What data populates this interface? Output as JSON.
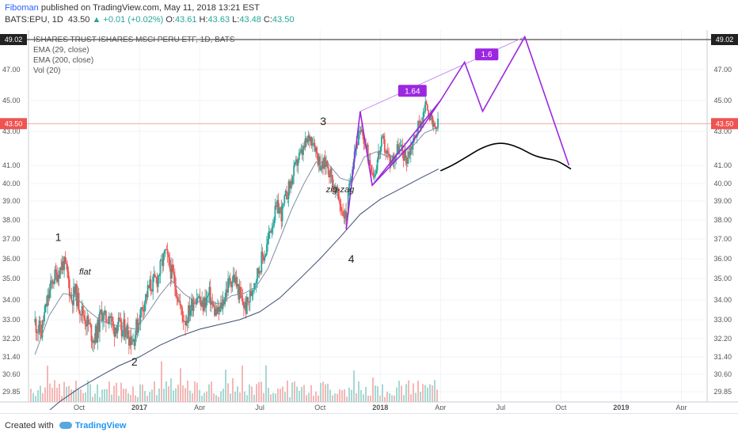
{
  "header": {
    "author": "Fiboman",
    "published": "published on TradingView.com, May 11, 2018 13:21 EST",
    "symbol": "BATS:EPU, 1D",
    "last": "43.50",
    "change": "▲ +0.01 (+0.02%)",
    "o_label": "O:",
    "o_val": "43.61",
    "h_label": "H:",
    "h_val": "43.63",
    "l_label": "L:",
    "l_val": "43.48",
    "c_label": "C:",
    "c_val": "43.50"
  },
  "legend": {
    "title": "ISHARES TRUST ISHARES MSCI PERU ETF, 1D, BATS",
    "ema1": "EMA (29, close)",
    "ema2": "EMA (200, close)",
    "vol": "Vol (20)"
  },
  "footer": {
    "created_with": "Created with",
    "brand": "TradingView"
  },
  "colors": {
    "up": "#26a69a",
    "down": "#ef5350",
    "ema": "#7f8fa4",
    "pattern": "#9c27e0",
    "projection": "#000000",
    "price_line": "#ef5350"
  },
  "chart_data": {
    "type": "candlestick",
    "y_ticks": [
      29.85,
      30.6,
      31.4,
      32.2,
      33.0,
      34.0,
      35.0,
      36.0,
      37.0,
      38.0,
      39.0,
      40.0,
      41.0,
      43.0,
      45.0,
      47.0
    ],
    "y_tick_labels": [
      "29.85",
      "30.60",
      "31.40",
      "32.20",
      "33.00",
      "34.00",
      "35.00",
      "36.00",
      "37.00",
      "38.00",
      "39.00",
      "40.00",
      "41.00",
      "43.00",
      "45.00",
      "47.00"
    ],
    "x_ticks": [
      "Oct",
      "2017",
      "Apr",
      "Jul",
      "Oct",
      "2018",
      "Apr",
      "Jul",
      "Oct",
      "2019",
      "Apr"
    ],
    "x_tick_months": [
      2.0,
      5.0,
      8.0,
      11.0,
      14.0,
      17.0,
      20.0,
      23.0,
      26.0,
      29.0,
      32.0
    ],
    "price_line": {
      "value": 43.5,
      "label": "43.50"
    },
    "high_line": {
      "value": 49.02,
      "label": "49.02"
    },
    "price_path": [
      [
        -0.2,
        32.9
      ],
      [
        0.1,
        32.4
      ],
      [
        0.4,
        33.9
      ],
      [
        0.7,
        35.0
      ],
      [
        1.0,
        35.4
      ],
      [
        1.2,
        35.8
      ],
      [
        1.4,
        35.3
      ],
      [
        1.6,
        34.0
      ],
      [
        1.8,
        34.4
      ],
      [
        2.0,
        33.7
      ],
      [
        2.3,
        33.1
      ],
      [
        2.5,
        32.7
      ],
      [
        2.7,
        32.2
      ],
      [
        2.9,
        32.5
      ],
      [
        3.1,
        33.4
      ],
      [
        3.3,
        33.0
      ],
      [
        3.5,
        33.3
      ],
      [
        3.7,
        32.6
      ],
      [
        3.9,
        32.9
      ],
      [
        4.1,
        32.4
      ],
      [
        4.3,
        32.7
      ],
      [
        4.5,
        32.3
      ],
      [
        4.7,
        32.2
      ],
      [
        4.9,
        32.8
      ],
      [
        5.1,
        33.5
      ],
      [
        5.3,
        34.1
      ],
      [
        5.5,
        34.6
      ],
      [
        5.7,
        34.8
      ],
      [
        5.9,
        35.0
      ],
      [
        6.1,
        35.7
      ],
      [
        6.3,
        36.3
      ],
      [
        6.5,
        35.6
      ],
      [
        6.7,
        35.0
      ],
      [
        6.9,
        34.3
      ],
      [
        7.1,
        33.3
      ],
      [
        7.3,
        33.0
      ],
      [
        7.5,
        33.5
      ],
      [
        7.7,
        34.0
      ],
      [
        7.9,
        34.3
      ],
      [
        8.1,
        33.6
      ],
      [
        8.3,
        34.0
      ],
      [
        8.5,
        34.2
      ],
      [
        8.7,
        33.5
      ],
      [
        8.9,
        33.3
      ],
      [
        9.1,
        33.7
      ],
      [
        9.3,
        34.4
      ],
      [
        9.5,
        34.9
      ],
      [
        9.7,
        35.1
      ],
      [
        9.9,
        34.5
      ],
      [
        10.1,
        33.9
      ],
      [
        10.3,
        33.6
      ],
      [
        10.5,
        34.1
      ],
      [
        10.7,
        34.9
      ],
      [
        10.9,
        35.3
      ],
      [
        11.1,
        36.0
      ],
      [
        11.3,
        36.4
      ],
      [
        11.5,
        37.4
      ],
      [
        11.7,
        38.2
      ],
      [
        11.9,
        38.7
      ],
      [
        12.1,
        38.3
      ],
      [
        12.3,
        39.3
      ],
      [
        12.5,
        39.9
      ],
      [
        12.7,
        40.6
      ],
      [
        12.9,
        41.4
      ],
      [
        13.1,
        41.7
      ],
      [
        13.3,
        42.3
      ],
      [
        13.5,
        42.7
      ],
      [
        13.7,
        42.4
      ],
      [
        13.9,
        41.4
      ],
      [
        14.1,
        40.9
      ],
      [
        14.3,
        41.2
      ],
      [
        14.5,
        40.6
      ],
      [
        14.7,
        39.8
      ],
      [
        14.9,
        39.2
      ],
      [
        15.1,
        38.5
      ],
      [
        15.3,
        38.1
      ],
      [
        15.5,
        40.2
      ],
      [
        15.7,
        41.9
      ],
      [
        15.9,
        42.6
      ],
      [
        16.1,
        42.9
      ],
      [
        16.3,
        41.9
      ],
      [
        16.5,
        41.2
      ],
      [
        16.7,
        40.5
      ],
      [
        16.9,
        41.6
      ],
      [
        17.1,
        42.4
      ],
      [
        17.3,
        41.8
      ],
      [
        17.5,
        41.2
      ],
      [
        17.7,
        41.5
      ],
      [
        17.9,
        42.1
      ],
      [
        18.1,
        41.8
      ],
      [
        18.3,
        41.4
      ],
      [
        18.5,
        42.0
      ],
      [
        18.7,
        42.6
      ],
      [
        18.9,
        43.4
      ],
      [
        19.1,
        43.8
      ],
      [
        19.3,
        44.9
      ],
      [
        19.5,
        43.8
      ],
      [
        19.7,
        43.0
      ],
      [
        19.9,
        43.5
      ]
    ],
    "ema29": [
      [
        -0.2,
        31.5
      ],
      [
        0.5,
        33.2
      ],
      [
        1.2,
        34.3
      ],
      [
        1.8,
        34.2
      ],
      [
        2.4,
        33.5
      ],
      [
        3.0,
        33.0
      ],
      [
        3.6,
        32.8
      ],
      [
        4.2,
        32.7
      ],
      [
        4.8,
        32.6
      ],
      [
        5.4,
        33.3
      ],
      [
        6.0,
        34.2
      ],
      [
        6.6,
        34.9
      ],
      [
        7.2,
        34.3
      ],
      [
        7.8,
        33.9
      ],
      [
        8.4,
        33.9
      ],
      [
        9.0,
        33.8
      ],
      [
        9.6,
        34.2
      ],
      [
        10.2,
        34.3
      ],
      [
        10.8,
        34.6
      ],
      [
        11.4,
        35.5
      ],
      [
        12.0,
        37.0
      ],
      [
        12.6,
        38.6
      ],
      [
        13.2,
        40.0
      ],
      [
        13.8,
        41.2
      ],
      [
        14.4,
        41.1
      ],
      [
        15.0,
        40.3
      ],
      [
        15.6,
        40.1
      ],
      [
        16.2,
        41.5
      ],
      [
        16.8,
        41.8
      ],
      [
        17.4,
        41.5
      ],
      [
        18.0,
        41.7
      ],
      [
        18.6,
        42.1
      ],
      [
        19.2,
        42.9
      ],
      [
        19.9,
        43.3
      ]
    ],
    "ema200": [
      [
        -0.2,
        28.5
      ],
      [
        1.0,
        29.4
      ],
      [
        2.0,
        30.0
      ],
      [
        3.0,
        30.5
      ],
      [
        4.0,
        31.0
      ],
      [
        5.0,
        31.4
      ],
      [
        6.0,
        31.9
      ],
      [
        7.0,
        32.3
      ],
      [
        8.0,
        32.6
      ],
      [
        9.0,
        32.8
      ],
      [
        10.0,
        33.0
      ],
      [
        11.0,
        33.4
      ],
      [
        12.0,
        34.1
      ],
      [
        13.0,
        35.0
      ],
      [
        14.0,
        36.0
      ],
      [
        15.0,
        37.1
      ],
      [
        16.0,
        38.3
      ],
      [
        17.0,
        39.1
      ],
      [
        18.0,
        39.7
      ],
      [
        19.0,
        40.3
      ],
      [
        19.9,
        40.8
      ]
    ],
    "pattern_lines": {
      "impulse": [
        [
          15.3,
          37.5
        ],
        [
          16.0,
          44.3
        ],
        [
          16.6,
          39.9
        ],
        [
          18.5,
          42.2
        ],
        [
          20.0,
          45.0
        ],
        [
          21.2,
          47.5
        ],
        [
          22.1,
          44.3
        ],
        [
          24.2,
          49.2
        ],
        [
          26.4,
          41.0
        ]
      ],
      "channel_upper": [
        [
          16.0,
          44.3
        ],
        [
          24.2,
          49.2
        ]
      ],
      "channel_lower": [
        [
          16.6,
          39.9
        ],
        [
          20.0,
          45.0
        ]
      ]
    },
    "projection_curve": [
      [
        20.0,
        40.7
      ],
      [
        20.6,
        41.0
      ],
      [
        21.3,
        41.5
      ],
      [
        22.0,
        42.0
      ],
      [
        22.7,
        42.3
      ],
      [
        23.3,
        42.3
      ],
      [
        24.0,
        42.0
      ],
      [
        24.6,
        41.6
      ],
      [
        25.2,
        41.4
      ],
      [
        25.8,
        41.3
      ],
      [
        26.5,
        40.8
      ]
    ],
    "annotations": [
      {
        "text": "1",
        "x": 0.8,
        "y": 36.9,
        "kind": "label"
      },
      {
        "text": "flat",
        "x": 2.0,
        "y": 35.2,
        "kind": "italic"
      },
      {
        "text": "2",
        "x": 4.6,
        "y": 31.0,
        "kind": "label"
      },
      {
        "text": "3",
        "x": 14.0,
        "y": 43.4,
        "kind": "label"
      },
      {
        "text": "zig-zag",
        "x": 14.3,
        "y": 39.5,
        "kind": "italic"
      },
      {
        "text": "4",
        "x": 15.4,
        "y": 35.8,
        "kind": "label"
      },
      {
        "text": "1.64",
        "x": 18.6,
        "y": 45.6,
        "kind": "badge"
      },
      {
        "text": "1.6",
        "x": 22.3,
        "y": 48.0,
        "kind": "badge"
      }
    ]
  }
}
